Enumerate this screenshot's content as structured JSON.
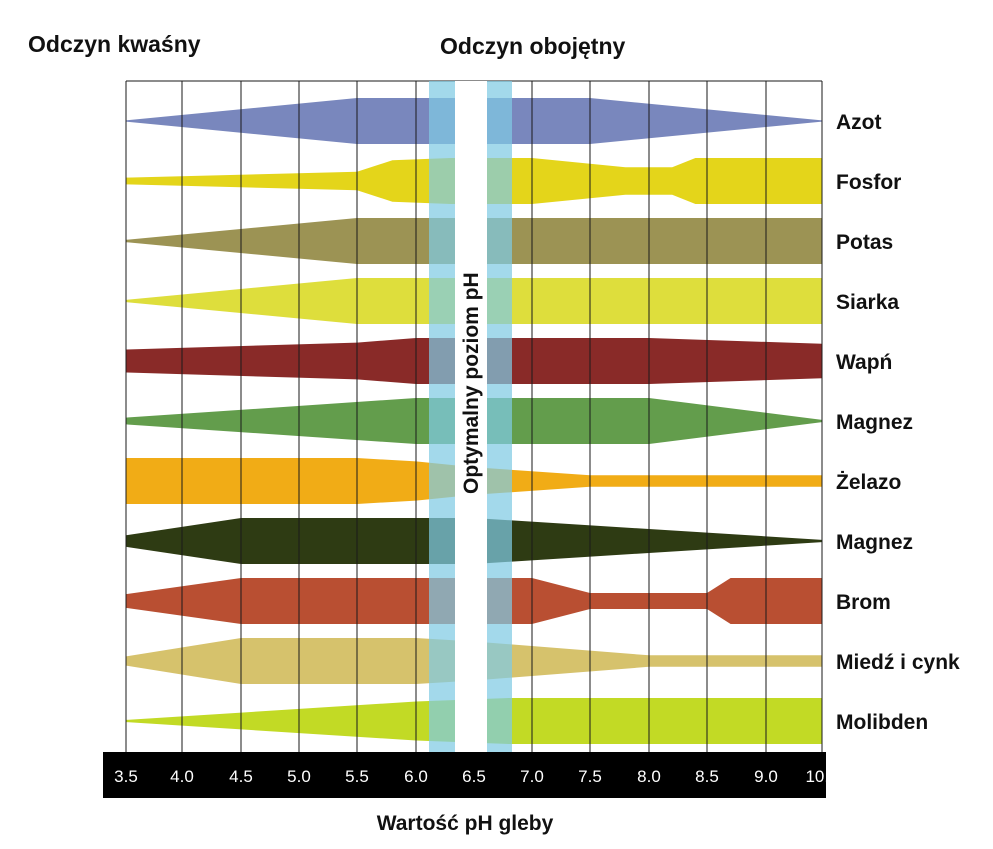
{
  "header_left": "Odczyn kwaśny",
  "header_center": "Odczyn obojętny",
  "optimal_label": "Optymalny poziom pH",
  "chart_data": {
    "type": "area",
    "title": "",
    "xlabel": "Wartość pH gleby",
    "ylabel": "",
    "xlim": [
      3.5,
      10.0
    ],
    "x_ticks": [
      3.5,
      4.0,
      4.5,
      5.0,
      5.5,
      6.0,
      6.5,
      7.0,
      7.5,
      8.0,
      8.5,
      9.0,
      10.0
    ],
    "x_tick_labels": [
      "3.5",
      "4.0",
      "4.5",
      "5.0",
      "5.5",
      "6.0",
      "6.5",
      "7.0",
      "7.5",
      "8.0",
      "8.5",
      "9.0",
      "10.0"
    ],
    "grid": true,
    "optimal_zone": {
      "outer": [
        6.1,
        6.8
      ],
      "core": [
        6.35,
        6.6
      ]
    },
    "series": [
      {
        "name": "Azot",
        "color": "#7987bd",
        "x": [
          3.5,
          5.5,
          7.5,
          10.0
        ],
        "thickness": [
          0.02,
          1.0,
          1.0,
          0.02
        ]
      },
      {
        "name": "Fosfor",
        "color": "#e4d51a",
        "x": [
          3.5,
          5.5,
          5.8,
          6.3,
          7.0,
          7.8,
          8.2,
          8.4,
          10.0
        ],
        "thickness": [
          0.15,
          0.4,
          0.9,
          1.0,
          1.0,
          0.6,
          0.6,
          1.0,
          1.0
        ]
      },
      {
        "name": "Potas",
        "color": "#9c9354",
        "x": [
          3.5,
          5.5,
          10.0
        ],
        "thickness": [
          0.05,
          1.0,
          1.0
        ]
      },
      {
        "name": "Siarka",
        "color": "#dede3c",
        "x": [
          3.5,
          5.5,
          10.0
        ],
        "thickness": [
          0.05,
          1.0,
          1.0
        ]
      },
      {
        "name": "Wapń",
        "color": "#892a28",
        "x": [
          3.5,
          5.5,
          6.0,
          8.0,
          10.0
        ],
        "thickness": [
          0.5,
          0.8,
          1.0,
          1.0,
          0.75
        ]
      },
      {
        "name": "Magnez",
        "color": "#639d4c",
        "x": [
          3.5,
          6.0,
          8.0,
          10.0
        ],
        "thickness": [
          0.15,
          1.0,
          1.0,
          0.05
        ]
      },
      {
        "name": "Żelazo",
        "color": "#f1ac16",
        "x": [
          3.5,
          5.5,
          6.0,
          6.5,
          7.5,
          10.0
        ],
        "thickness": [
          1.0,
          1.0,
          0.85,
          0.6,
          0.25,
          0.25
        ]
      },
      {
        "name": "Magnez",
        "color": "#2e3b13",
        "x": [
          3.5,
          4.5,
          6.0,
          6.5,
          10.0
        ],
        "thickness": [
          0.25,
          1.0,
          1.0,
          1.0,
          0.05
        ]
      },
      {
        "name": "Brom",
        "color": "#b94f32",
        "x": [
          3.5,
          4.5,
          6.5,
          7.0,
          7.5,
          8.5,
          8.7,
          10.0
        ],
        "thickness": [
          0.3,
          1.0,
          1.0,
          1.0,
          0.35,
          0.35,
          1.0,
          1.0
        ]
      },
      {
        "name": "Miedź i cynk",
        "color": "#d6c26c",
        "x": [
          3.5,
          4.5,
          6.0,
          6.5,
          8.0,
          10.0
        ],
        "thickness": [
          0.2,
          1.0,
          1.0,
          0.85,
          0.25,
          0.25
        ]
      },
      {
        "name": "Molibden",
        "color": "#c2da25",
        "x": [
          3.5,
          6.0,
          6.8,
          10.0
        ],
        "thickness": [
          0.05,
          0.85,
          1.0,
          1.0
        ]
      }
    ]
  }
}
